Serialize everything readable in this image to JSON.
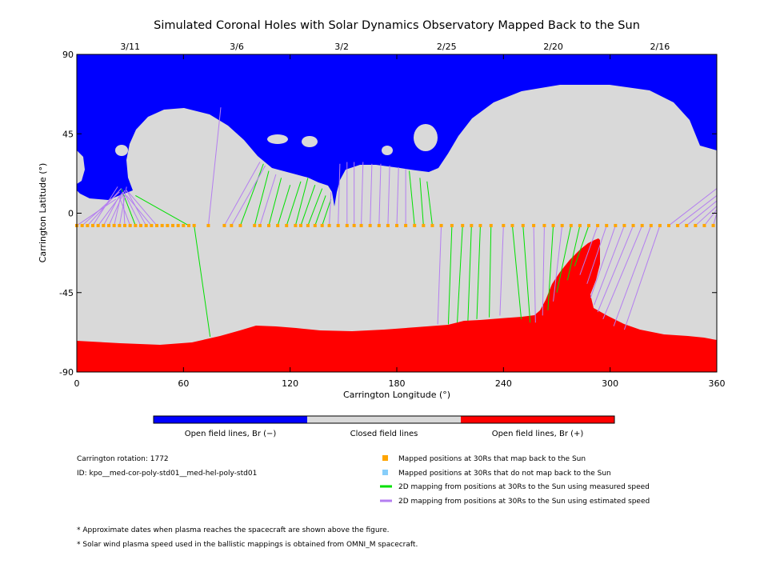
{
  "chart_data": {
    "type": "map",
    "title": "Simulated Coronal Holes with Solar Dynamics Observatory Mapped Back to the Sun",
    "xlabel": "Carrington Longitude (°)",
    "ylabel": "Carrington Latitude (°)",
    "xlim": [
      0,
      360
    ],
    "ylim": [
      -90,
      90
    ],
    "x_ticks": [
      "0",
      "60",
      "120",
      "180",
      "240",
      "300",
      "360"
    ],
    "y_ticks": [
      "90",
      "45",
      "0",
      "-45",
      "-90"
    ],
    "top_dates": [
      {
        "label": "3/11",
        "lon": 30
      },
      {
        "label": "3/6",
        "lon": 90
      },
      {
        "label": "3/2",
        "lon": 149
      },
      {
        "label": "2/25",
        "lon": 208
      },
      {
        "label": "2/20",
        "lon": 268
      },
      {
        "label": "2/16",
        "lon": 328
      }
    ],
    "colors": {
      "open_negative": "#0000ff",
      "closed": "#d9d9d9",
      "open_positive": "#ff0000",
      "mapped_point": "#ffa500",
      "unmapped_point": "#87cefa",
      "measured_line": "#00e000",
      "estimated_line": "#b47ef0"
    },
    "spacecraft_latitude": -7,
    "mapped_point_longitudes": [
      0,
      3,
      6,
      9,
      12,
      15,
      18,
      21,
      24,
      27,
      30,
      33,
      36,
      39,
      42,
      45,
      48,
      51,
      54,
      57,
      60,
      63,
      66,
      74,
      83,
      87,
      92,
      100,
      103,
      108,
      113,
      118,
      123,
      126,
      130,
      134,
      138,
      142,
      147,
      152,
      156,
      160,
      165,
      170,
      175,
      180,
      185,
      190,
      195,
      200,
      205,
      211,
      217,
      222,
      227,
      233,
      240,
      245,
      251,
      257,
      263,
      268,
      273,
      278,
      283,
      288,
      293,
      298,
      303,
      308,
      313,
      318,
      323,
      328,
      333,
      338,
      343,
      348,
      353,
      358
    ],
    "footpoint_links": [
      {
        "lon": 33,
        "fp_lon": 25,
        "fp_lat": 14,
        "speed": "measured"
      },
      {
        "lon": 63,
        "fp_lon": 33,
        "fp_lat": 10,
        "speed": "measured"
      },
      {
        "lon": 66,
        "fp_lon": 75,
        "fp_lat": -70,
        "speed": "measured"
      },
      {
        "lon": 92,
        "fp_lon": 105,
        "fp_lat": 28,
        "speed": "measured"
      },
      {
        "lon": 100,
        "fp_lon": 108,
        "fp_lat": 24,
        "speed": "measured"
      },
      {
        "lon": 108,
        "fp_lon": 115,
        "fp_lat": 20,
        "speed": "measured"
      },
      {
        "lon": 113,
        "fp_lon": 120,
        "fp_lat": 16,
        "speed": "measured"
      },
      {
        "lon": 118,
        "fp_lon": 126,
        "fp_lat": 18,
        "speed": "measured"
      },
      {
        "lon": 123,
        "fp_lon": 130,
        "fp_lat": 20,
        "speed": "measured"
      },
      {
        "lon": 126,
        "fp_lon": 134,
        "fp_lat": 16,
        "speed": "measured"
      },
      {
        "lon": 130,
        "fp_lon": 138,
        "fp_lat": 14,
        "speed": "measured"
      },
      {
        "lon": 134,
        "fp_lon": 140,
        "fp_lat": 10,
        "speed": "measured"
      },
      {
        "lon": 138,
        "fp_lon": 143,
        "fp_lat": 8,
        "speed": "measured"
      },
      {
        "lon": 190,
        "fp_lon": 187,
        "fp_lat": 24,
        "speed": "measured"
      },
      {
        "lon": 195,
        "fp_lon": 193,
        "fp_lat": 20,
        "speed": "measured"
      },
      {
        "lon": 200,
        "fp_lon": 197,
        "fp_lat": 18,
        "speed": "measured"
      },
      {
        "lon": 211,
        "fp_lon": 209,
        "fp_lat": -63,
        "speed": "measured"
      },
      {
        "lon": 217,
        "fp_lon": 214,
        "fp_lat": -62,
        "speed": "measured"
      },
      {
        "lon": 222,
        "fp_lon": 220,
        "fp_lat": -61,
        "speed": "measured"
      },
      {
        "lon": 227,
        "fp_lon": 225,
        "fp_lat": -60,
        "speed": "measured"
      },
      {
        "lon": 233,
        "fp_lon": 232,
        "fp_lat": -59,
        "speed": "measured"
      },
      {
        "lon": 245,
        "fp_lon": 250,
        "fp_lat": -60,
        "speed": "measured"
      },
      {
        "lon": 251,
        "fp_lon": 255,
        "fp_lat": -62,
        "speed": "measured"
      },
      {
        "lon": 268,
        "fp_lon": 265,
        "fp_lat": -55,
        "speed": "measured"
      },
      {
        "lon": 278,
        "fp_lon": 270,
        "fp_lat": -45,
        "speed": "measured"
      },
      {
        "lon": 283,
        "fp_lon": 276,
        "fp_lat": -38,
        "speed": "measured"
      },
      {
        "lon": 288,
        "fp_lon": 280,
        "fp_lat": -30,
        "speed": "measured"
      },
      {
        "lon": 0,
        "fp_lon": 22,
        "fp_lat": 8,
        "speed": "estimated"
      },
      {
        "lon": 3,
        "fp_lon": 24,
        "fp_lat": 12,
        "speed": "estimated"
      },
      {
        "lon": 6,
        "fp_lon": 25,
        "fp_lat": 14,
        "speed": "estimated"
      },
      {
        "lon": 9,
        "fp_lon": 23,
        "fp_lat": 15,
        "speed": "estimated"
      },
      {
        "lon": 12,
        "fp_lon": 26,
        "fp_lat": 12,
        "speed": "estimated"
      },
      {
        "lon": 15,
        "fp_lon": 24,
        "fp_lat": 10,
        "speed": "estimated"
      },
      {
        "lon": 18,
        "fp_lon": 27,
        "fp_lat": 13,
        "speed": "estimated"
      },
      {
        "lon": 21,
        "fp_lon": 25,
        "fp_lat": 11,
        "speed": "estimated"
      },
      {
        "lon": 24,
        "fp_lon": 28,
        "fp_lat": 15,
        "speed": "estimated"
      },
      {
        "lon": 27,
        "fp_lon": 26,
        "fp_lat": 12,
        "speed": "estimated"
      },
      {
        "lon": 30,
        "fp_lon": 24,
        "fp_lat": 9,
        "speed": "estimated"
      },
      {
        "lon": 36,
        "fp_lon": 27,
        "fp_lat": 11,
        "speed": "estimated"
      },
      {
        "lon": 39,
        "fp_lon": 28,
        "fp_lat": 13,
        "speed": "estimated"
      },
      {
        "lon": 42,
        "fp_lon": 28,
        "fp_lat": 10,
        "speed": "estimated"
      },
      {
        "lon": 45,
        "fp_lon": 29,
        "fp_lat": 12,
        "speed": "estimated"
      },
      {
        "lon": 74,
        "fp_lon": 81,
        "fp_lat": 60,
        "speed": "estimated"
      },
      {
        "lon": 83,
        "fp_lon": 103,
        "fp_lat": 29,
        "speed": "estimated"
      },
      {
        "lon": 87,
        "fp_lon": 106,
        "fp_lat": 27,
        "speed": "estimated"
      },
      {
        "lon": 103,
        "fp_lon": 112,
        "fp_lat": 22,
        "speed": "estimated"
      },
      {
        "lon": 142,
        "fp_lon": 143,
        "fp_lat": 12,
        "speed": "estimated"
      },
      {
        "lon": 147,
        "fp_lon": 148,
        "fp_lat": 28,
        "speed": "estimated"
      },
      {
        "lon": 152,
        "fp_lon": 152,
        "fp_lat": 29,
        "speed": "estimated"
      },
      {
        "lon": 156,
        "fp_lon": 156,
        "fp_lat": 29,
        "speed": "estimated"
      },
      {
        "lon": 160,
        "fp_lon": 161,
        "fp_lat": 29,
        "speed": "estimated"
      },
      {
        "lon": 165,
        "fp_lon": 166,
        "fp_lat": 28,
        "speed": "estimated"
      },
      {
        "lon": 170,
        "fp_lon": 171,
        "fp_lat": 28,
        "speed": "estimated"
      },
      {
        "lon": 175,
        "fp_lon": 176,
        "fp_lat": 27,
        "speed": "estimated"
      },
      {
        "lon": 180,
        "fp_lon": 181,
        "fp_lat": 26,
        "speed": "estimated"
      },
      {
        "lon": 185,
        "fp_lon": 185,
        "fp_lat": 25,
        "speed": "estimated"
      },
      {
        "lon": 205,
        "fp_lon": 203,
        "fp_lat": -63,
        "speed": "estimated"
      },
      {
        "lon": 240,
        "fp_lon": 238,
        "fp_lat": -58,
        "speed": "estimated"
      },
      {
        "lon": 257,
        "fp_lon": 258,
        "fp_lat": -62,
        "speed": "estimated"
      },
      {
        "lon": 263,
        "fp_lon": 262,
        "fp_lat": -58,
        "speed": "estimated"
      },
      {
        "lon": 273,
        "fp_lon": 268,
        "fp_lat": -50,
        "speed": "estimated"
      },
      {
        "lon": 293,
        "fp_lon": 283,
        "fp_lat": -35,
        "speed": "estimated"
      },
      {
        "lon": 298,
        "fp_lon": 287,
        "fp_lat": -40,
        "speed": "estimated"
      },
      {
        "lon": 303,
        "fp_lon": 289,
        "fp_lat": -48,
        "speed": "estimated"
      },
      {
        "lon": 308,
        "fp_lon": 291,
        "fp_lat": -52,
        "speed": "estimated"
      },
      {
        "lon": 313,
        "fp_lon": 293,
        "fp_lat": -56,
        "speed": "estimated"
      },
      {
        "lon": 318,
        "fp_lon": 296,
        "fp_lat": -60,
        "speed": "estimated"
      },
      {
        "lon": 323,
        "fp_lon": 302,
        "fp_lat": -64,
        "speed": "estimated"
      },
      {
        "lon": 328,
        "fp_lon": 308,
        "fp_lat": -66,
        "speed": "estimated"
      },
      {
        "lon": 333,
        "fp_lon": 360,
        "fp_lat": 14,
        "speed": "estimated"
      },
      {
        "lon": 338,
        "fp_lon": 360,
        "fp_lat": 10,
        "speed": "estimated"
      },
      {
        "lon": 343,
        "fp_lon": 360,
        "fp_lat": 7,
        "speed": "estimated"
      },
      {
        "lon": 348,
        "fp_lon": 360,
        "fp_lat": 4,
        "speed": "estimated"
      },
      {
        "lon": 353,
        "fp_lon": 360,
        "fp_lat": 2,
        "speed": "estimated"
      },
      {
        "lon": 358,
        "fp_lon": 360,
        "fp_lat": 0,
        "speed": "estimated"
      }
    ],
    "colorbar": [
      {
        "label": "Open field lines, Br (−)",
        "color": "#0000ff"
      },
      {
        "label": "Closed field lines",
        "color": "#d9d9d9"
      },
      {
        "label": "Open field lines, Br (+)",
        "color": "#ff0000"
      }
    ],
    "legend": [
      {
        "type": "square",
        "color": "#ffa500",
        "label": "Mapped positions at 30Rs that map back to the Sun"
      },
      {
        "type": "square",
        "color": "#87cefa",
        "label": "Mapped positions at 30Rs that do not map back to the Sun"
      },
      {
        "type": "line",
        "color": "#00e000",
        "label": "2D mapping from positions at 30Rs to the Sun using measured speed"
      },
      {
        "type": "line",
        "color": "#b47ef0",
        "label": "2D mapping from positions at 30Rs to the Sun using estimated speed"
      }
    ],
    "info": {
      "rotation": "Carrington rotation: 1772",
      "id": "ID: kpo__med-cor-poly-std01__med-hel-poly-std01"
    },
    "footnotes": [
      "* Approximate dates when plasma reaches the spacecraft are shown above the figure.",
      "* Solar wind plasma speed used in the ballistic mappings is obtained from OMNI_M spacecraft."
    ]
  }
}
